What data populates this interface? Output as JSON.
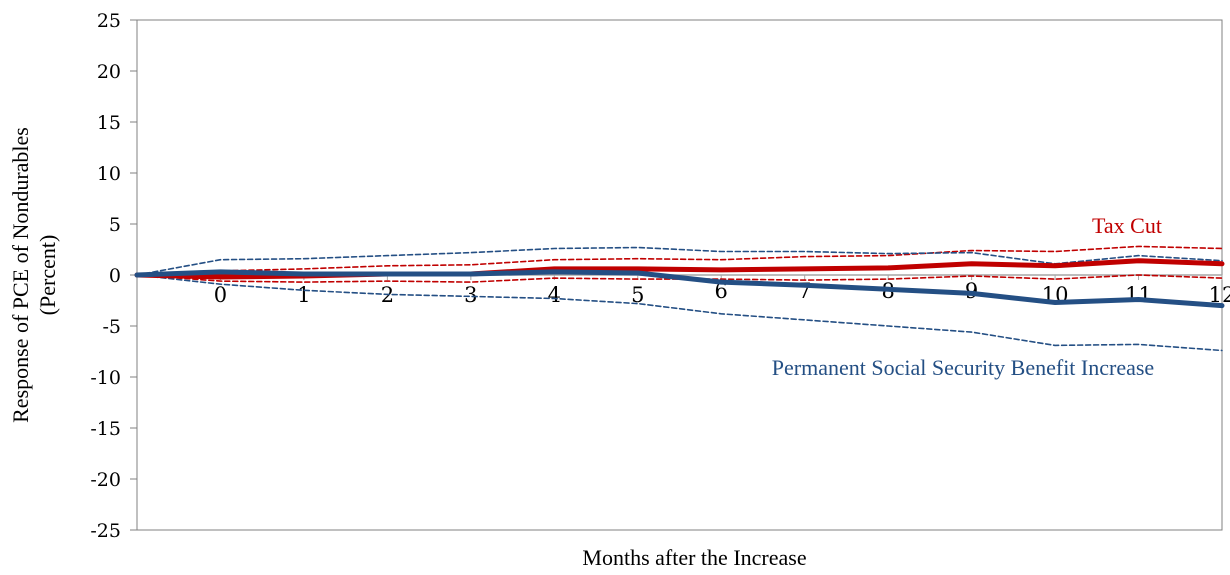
{
  "chart_data": {
    "type": "line",
    "x": [
      -1,
      0,
      1,
      2,
      3,
      4,
      5,
      6,
      7,
      8,
      9,
      10,
      11,
      12
    ],
    "x_tick_labels": [
      "0",
      "1",
      "2",
      "3",
      "4",
      "5",
      "6",
      "7",
      "8",
      "9",
      "10",
      "11",
      "12"
    ],
    "xlabel": "Months after the Increase",
    "ylabel_lines": [
      "Response of PCE of Nondurables",
      "(Percent)"
    ],
    "ylim": [
      -25,
      25
    ],
    "y_ticks": [
      -25,
      -20,
      -15,
      -10,
      -5,
      0,
      5,
      10,
      15,
      20,
      25
    ],
    "grid": false,
    "colors": {
      "tax_cut": "#c00000",
      "social_security": "#244f84",
      "zero_line": "#a6a6a6"
    },
    "series": [
      {
        "name": "Tax Cut",
        "style": "solid",
        "color": "#c00000",
        "values": [
          0,
          -0.2,
          -0.1,
          0.1,
          0.1,
          0.6,
          0.6,
          0.5,
          0.6,
          0.7,
          1.1,
          0.9,
          1.4,
          1.1
        ]
      },
      {
        "style": "dashed",
        "color": "#c00000",
        "values": [
          0,
          0.4,
          0.6,
          0.9,
          1.0,
          1.5,
          1.6,
          1.5,
          1.8,
          1.9,
          2.4,
          2.3,
          2.8,
          2.6
        ]
      },
      {
        "style": "dashed",
        "color": "#c00000",
        "values": [
          0,
          -0.6,
          -0.7,
          -0.6,
          -0.7,
          -0.3,
          -0.4,
          -0.4,
          -0.5,
          -0.4,
          -0.1,
          -0.4,
          0.0,
          -0.3
        ]
      },
      {
        "name": "Permanent Social Security Benefit Increase",
        "style": "solid",
        "color": "#244f84",
        "values": [
          0,
          0.3,
          0.1,
          0.1,
          0.1,
          0.3,
          0.2,
          -0.7,
          -1.0,
          -1.4,
          -1.8,
          -2.7,
          -2.4,
          -3.0
        ]
      },
      {
        "style": "dashed",
        "color": "#244f84",
        "values": [
          0,
          1.5,
          1.6,
          1.9,
          2.2,
          2.6,
          2.7,
          2.3,
          2.3,
          2.1,
          2.2,
          1.1,
          1.9,
          1.4
        ]
      },
      {
        "style": "dashed",
        "color": "#244f84",
        "values": [
          0,
          -0.9,
          -1.5,
          -1.9,
          -2.1,
          -2.3,
          -2.8,
          -3.8,
          -4.4,
          -5.0,
          -5.6,
          -6.9,
          -6.8,
          -7.4
        ]
      }
    ],
    "annotations": [
      {
        "text": "Tax Cut",
        "color": "#c00000"
      },
      {
        "text": "Permanent Social Security Benefit Increase",
        "color": "#244f84"
      }
    ]
  }
}
